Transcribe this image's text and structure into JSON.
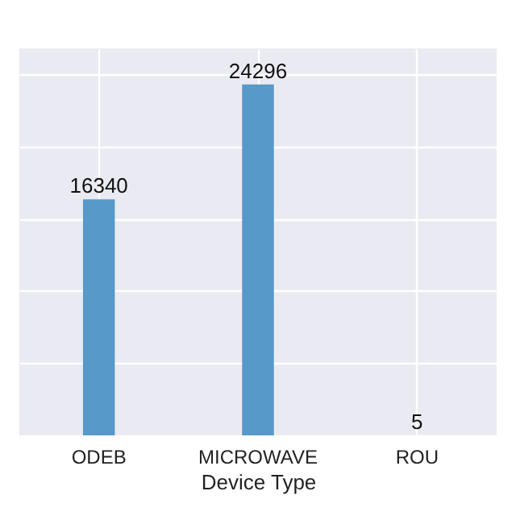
{
  "chart_data": {
    "type": "bar",
    "xlabel": "Device Type",
    "categories": [
      "ODEB",
      "MICROWAVE",
      "ROU"
    ],
    "values": [
      16340,
      24296,
      5
    ],
    "value_labels": [
      "16340",
      "24296",
      "5"
    ],
    "color": "#5799c9",
    "ylim": [
      0,
      26800
    ],
    "yticks": [
      {
        "value": 0,
        "label": null
      },
      {
        "value": 5000,
        "label": null
      },
      {
        "value": 10000,
        "label": null
      },
      {
        "value": 15000,
        "label": null
      },
      {
        "value": 20000,
        "label": null
      },
      {
        "value": 25000,
        "label": null
      }
    ],
    "tick_labels": "x",
    "grid": true
  }
}
